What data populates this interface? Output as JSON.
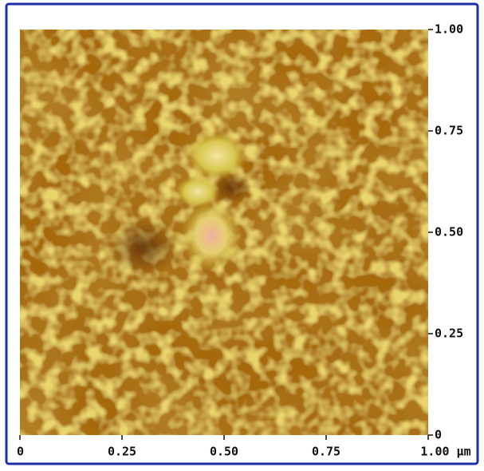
{
  "chart_data": {
    "type": "image",
    "xlim": [
      0,
      1
    ],
    "ylim": [
      0,
      1
    ],
    "xticks": [
      0,
      0.25,
      {
        "value": 0.5,
        "label": "0.50"
      },
      0.75,
      {
        "value": 1,
        "label": "1.00 μm"
      }
    ],
    "yticks": [
      0,
      0.25,
      {
        "value": 0.5,
        "label": "0.50"
      },
      0.75,
      {
        "value": 1,
        "label": "1.00"
      }
    ]
  }
}
